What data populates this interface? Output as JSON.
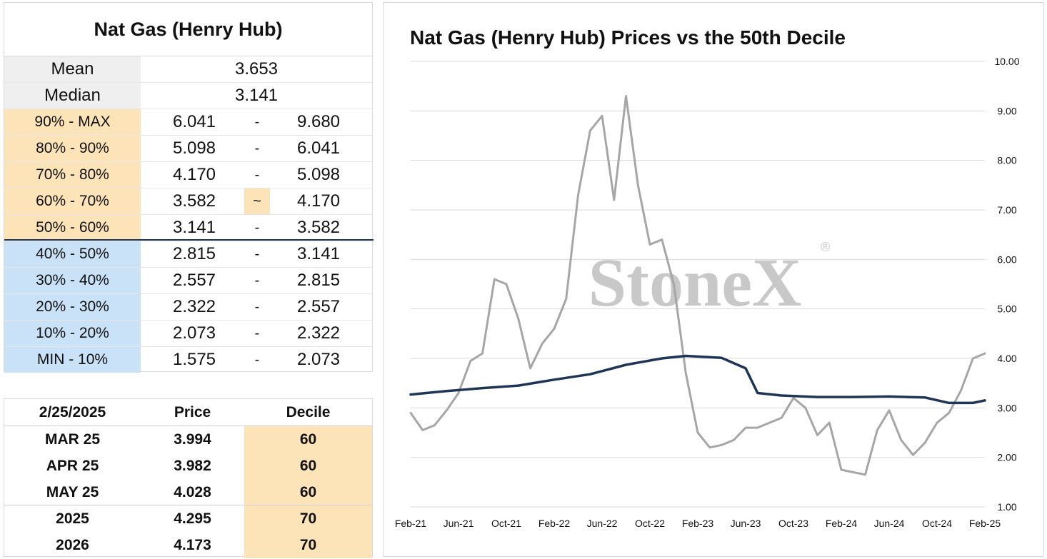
{
  "stats": {
    "title": "Nat Gas (Henry Hub)",
    "mean_label": "Mean",
    "mean_value": "3.653",
    "median_label": "Median",
    "median_value": "3.141",
    "marker_symbol": "~",
    "dash_symbol": "-",
    "deciles": [
      {
        "label": "90% - MAX",
        "low": "6.041",
        "high": "9.680",
        "band": "upper"
      },
      {
        "label": "80% - 90%",
        "low": "5.098",
        "high": "6.041",
        "band": "upper"
      },
      {
        "label": "70% - 80%",
        "low": "4.170",
        "high": "5.098",
        "band": "upper"
      },
      {
        "label": "60% - 70%",
        "low": "3.582",
        "high": "4.170",
        "band": "upper",
        "current": true
      },
      {
        "label": "50% - 60%",
        "low": "3.141",
        "high": "3.582",
        "band": "upper"
      },
      {
        "label": "40% - 50%",
        "low": "2.815",
        "high": "3.141",
        "band": "lower"
      },
      {
        "label": "30% - 40%",
        "low": "2.557",
        "high": "2.815",
        "band": "lower"
      },
      {
        "label": "20% - 30%",
        "low": "2.322",
        "high": "2.557",
        "band": "lower"
      },
      {
        "label": "10% - 20%",
        "low": "2.073",
        "high": "2.322",
        "band": "lower"
      },
      {
        "label": "MIN - 10%",
        "low": "1.575",
        "high": "2.073",
        "band": "lower"
      }
    ]
  },
  "futures": {
    "headers": [
      "2/25/2025",
      "Price",
      "Decile"
    ],
    "rows": [
      {
        "contract": "MAR 25",
        "price": "3.994",
        "decile": "60"
      },
      {
        "contract": "APR 25",
        "price": "3.982",
        "decile": "60"
      },
      {
        "contract": "MAY 25",
        "price": "4.028",
        "decile": "60"
      },
      {
        "contract": "2025",
        "price": "4.295",
        "decile": "70"
      },
      {
        "contract": "2026",
        "price": "4.173",
        "decile": "70"
      }
    ]
  },
  "colors": {
    "upper_band": "#fde4b8",
    "lower_band": "#c9e2f8",
    "price_line": "#a6a6a6",
    "median_line": "#1f3556",
    "grid": "#d9d9d9"
  },
  "chart_data": {
    "type": "line",
    "title": "Nat Gas (Henry Hub) Prices vs the 50th Decile",
    "watermark": "StoneX",
    "watermark_mark": "®",
    "x_tick_labels": [
      "Feb-21",
      "Jun-21",
      "Oct-21",
      "Feb-22",
      "Jun-22",
      "Oct-22",
      "Feb-23",
      "Jun-23",
      "Oct-23",
      "Feb-24",
      "Jun-24",
      "Oct-24",
      "Feb-25"
    ],
    "y_tick_labels": [
      "1.00",
      "2.00",
      "3.00",
      "4.00",
      "5.00",
      "6.00",
      "7.00",
      "8.00",
      "9.00",
      "10.00"
    ],
    "ylim": [
      1,
      10
    ],
    "y_axis_side": "right",
    "grid": true,
    "series": [
      {
        "key": "price",
        "x": [
          "2021-02",
          "2021-03",
          "2021-04",
          "2021-05",
          "2021-06",
          "2021-07",
          "2021-08",
          "2021-09",
          "2021-10",
          "2021-11",
          "2021-12",
          "2022-01",
          "2022-02",
          "2022-03",
          "2022-04",
          "2022-05",
          "2022-06",
          "2022-07",
          "2022-08",
          "2022-09",
          "2022-10",
          "2022-11",
          "2022-12",
          "2023-01",
          "2023-02",
          "2023-03",
          "2023-04",
          "2023-05",
          "2023-06",
          "2023-07",
          "2023-08",
          "2023-09",
          "2023-10",
          "2023-11",
          "2023-12",
          "2024-01",
          "2024-02",
          "2024-03",
          "2024-04",
          "2024-05",
          "2024-06",
          "2024-07",
          "2024-08",
          "2024-09",
          "2024-10",
          "2024-11",
          "2024-12",
          "2025-01",
          "2025-02"
        ],
        "values": [
          2.9,
          2.55,
          2.65,
          2.95,
          3.3,
          3.95,
          4.1,
          5.6,
          5.5,
          4.8,
          3.8,
          4.3,
          4.6,
          5.2,
          7.3,
          8.6,
          8.9,
          7.2,
          9.3,
          7.5,
          6.3,
          6.4,
          5.5,
          3.7,
          2.5,
          2.2,
          2.25,
          2.35,
          2.6,
          2.6,
          2.7,
          2.8,
          3.2,
          3.0,
          2.45,
          2.7,
          1.75,
          1.7,
          1.65,
          2.55,
          2.95,
          2.35,
          2.05,
          2.3,
          2.7,
          2.9,
          3.35,
          4.0,
          4.1
        ]
      },
      {
        "key": "median",
        "x": [
          "2021-02",
          "2021-05",
          "2021-08",
          "2021-11",
          "2022-02",
          "2022-05",
          "2022-08",
          "2022-11",
          "2023-01",
          "2023-04",
          "2023-06",
          "2023-07",
          "2023-09",
          "2023-12",
          "2024-03",
          "2024-06",
          "2024-09",
          "2024-11",
          "2025-01",
          "2025-02"
        ],
        "values": [
          3.27,
          3.34,
          3.4,
          3.45,
          3.57,
          3.68,
          3.87,
          4.0,
          4.05,
          4.01,
          3.8,
          3.3,
          3.25,
          3.22,
          3.22,
          3.23,
          3.21,
          3.1,
          3.1,
          3.15
        ]
      }
    ]
  }
}
